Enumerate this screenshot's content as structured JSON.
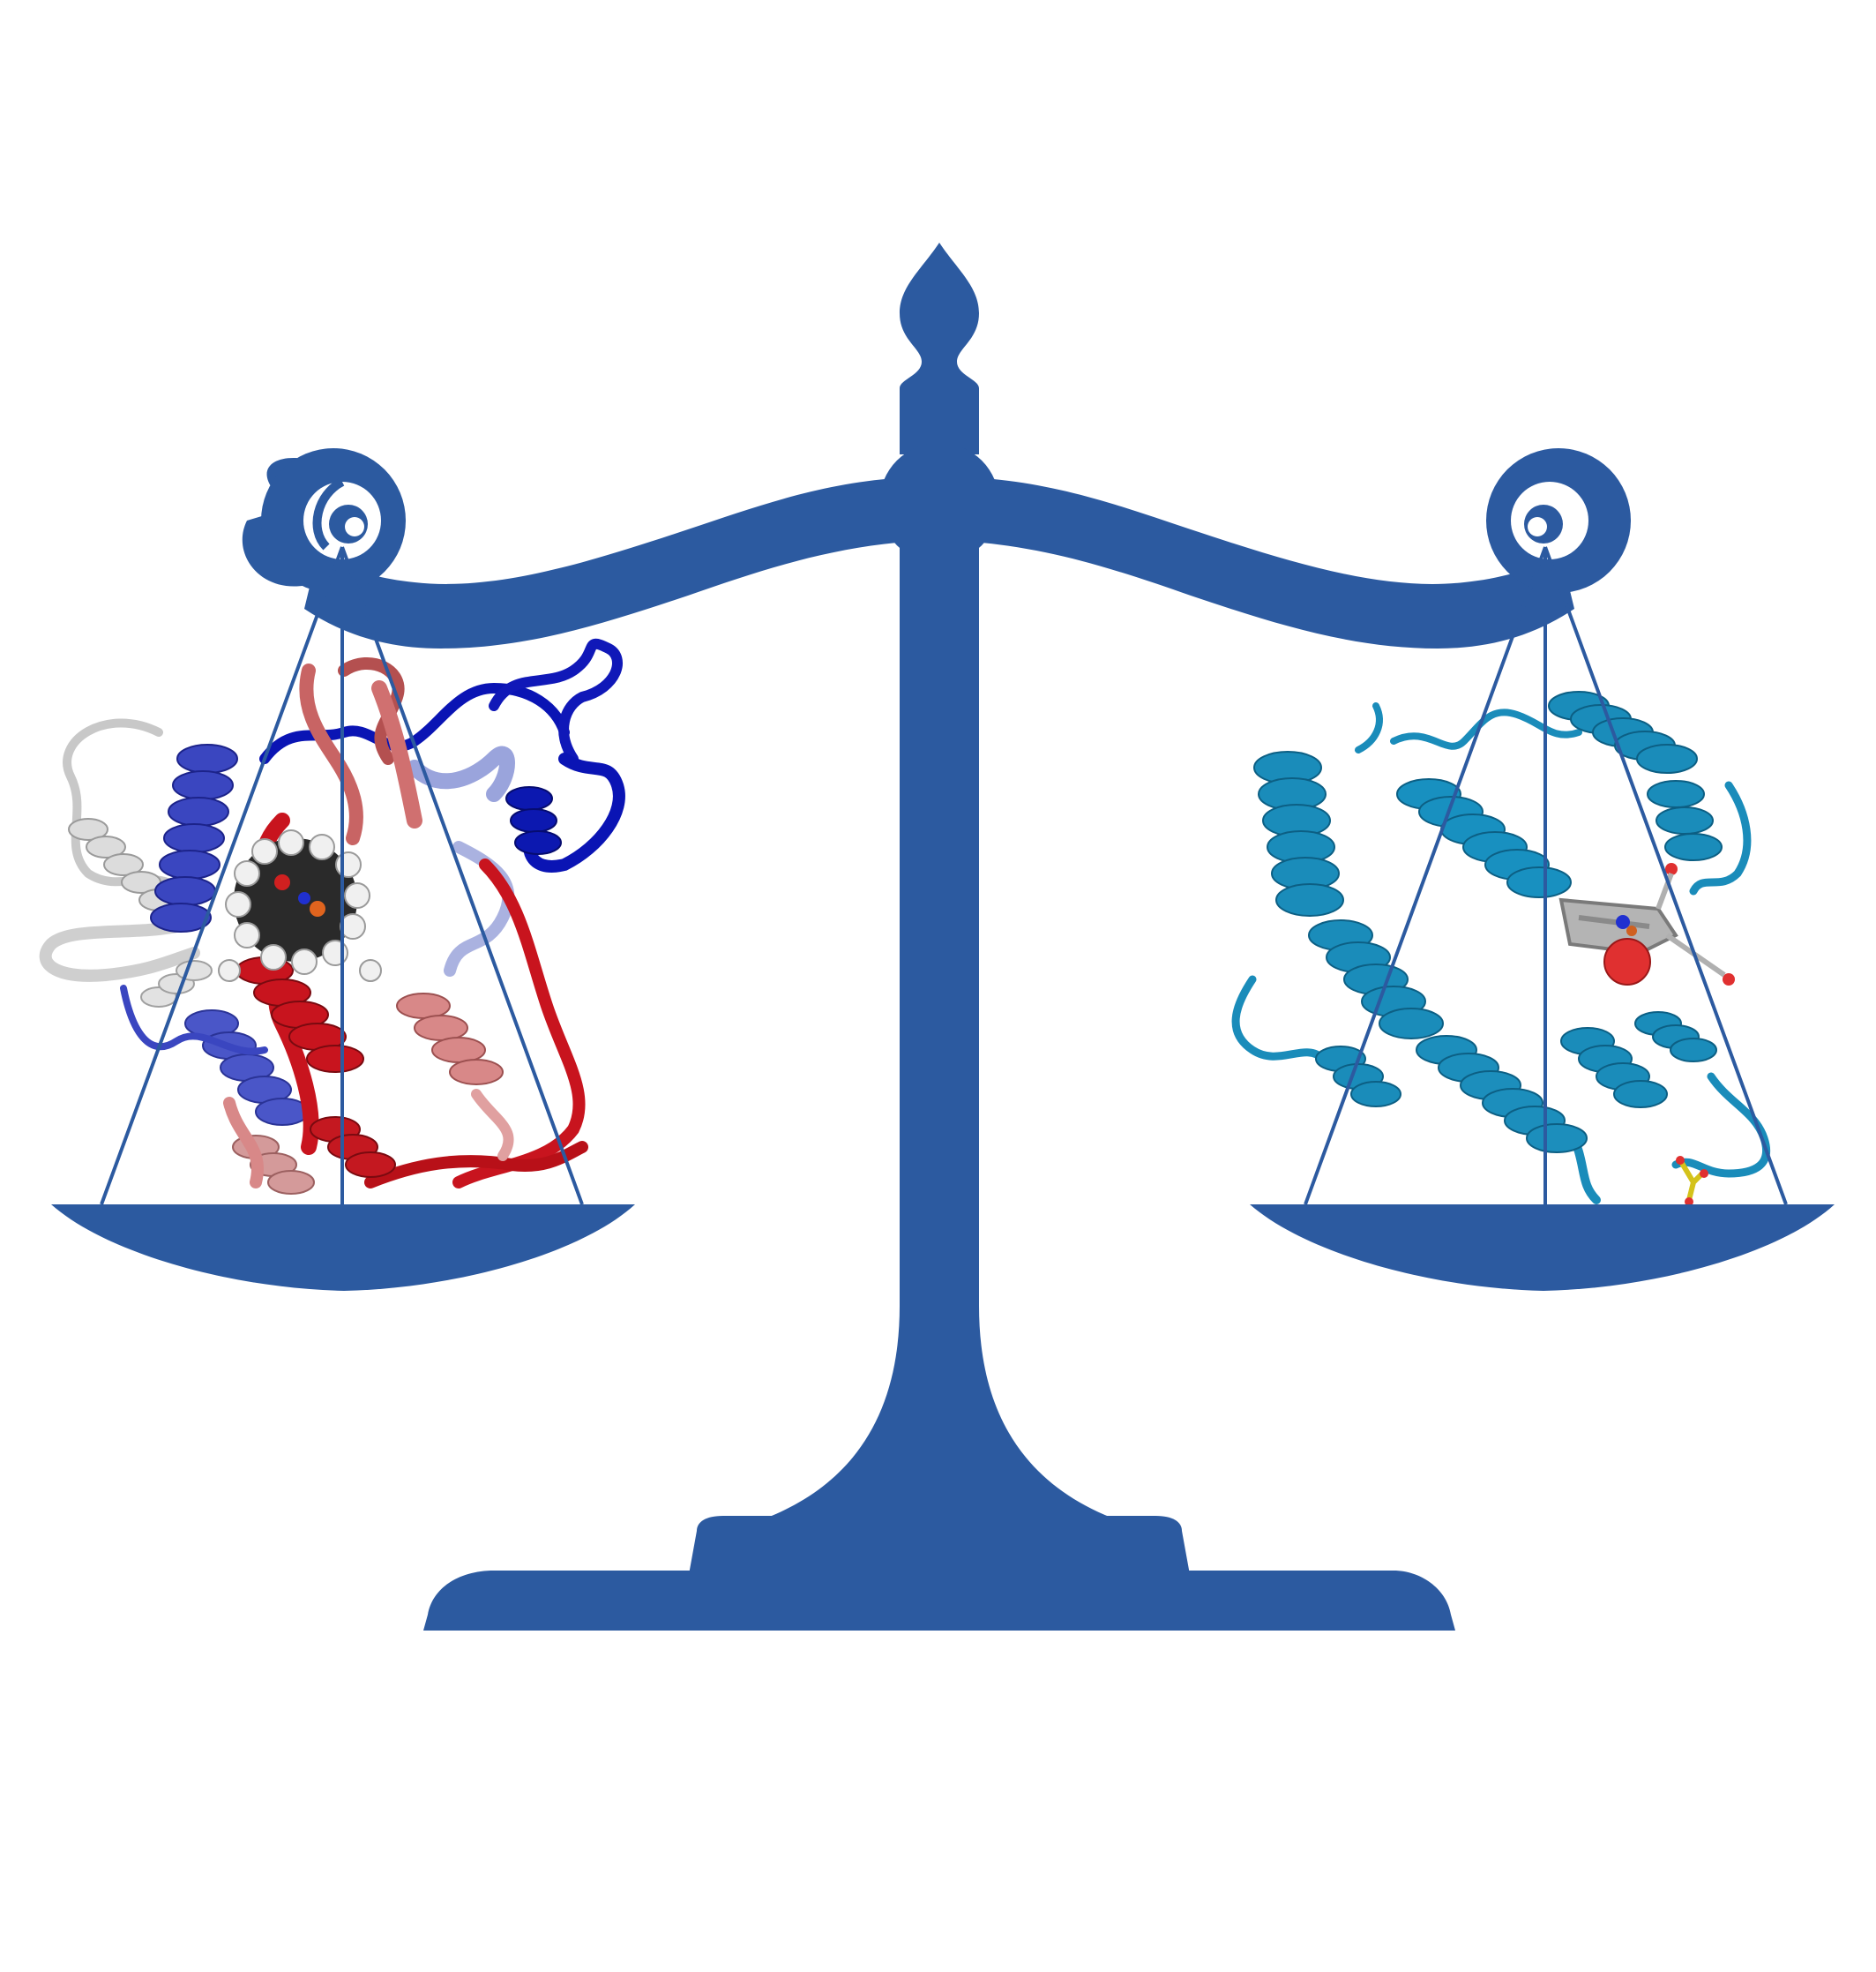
{
  "figure": {
    "background": "#ffffff",
    "subject": "balance-scale-comparing-two-proteins"
  },
  "scale": {
    "color": "#2c5aa0",
    "parts": [
      "finial",
      "pillar",
      "beam",
      "left-scroll",
      "right-scroll",
      "left-pan",
      "right-pan",
      "stem",
      "base"
    ]
  },
  "left_pan": {
    "content": "heme-enzyme-ribbon-structure",
    "colors": {
      "dark_blue": "#0a14b4",
      "mid_blue": "#3a46c0",
      "light_blue": "#9aa4dc",
      "white": "#d8d8d8",
      "pink": "#d88888",
      "light_red": "#c86464",
      "red": "#c8141e",
      "cofactor_dark": "#222222",
      "cofactor_light": "#f0f0f0"
    }
  },
  "right_pan": {
    "content": "myoglobin-ribbon-structure",
    "colors": {
      "helix": "#1a8cba",
      "helix_dark": "#0c5f84",
      "heme_gray": "#a0a0a0",
      "ligand_red": "#e03030",
      "sulfate_yellow": "#d4c21a"
    }
  }
}
